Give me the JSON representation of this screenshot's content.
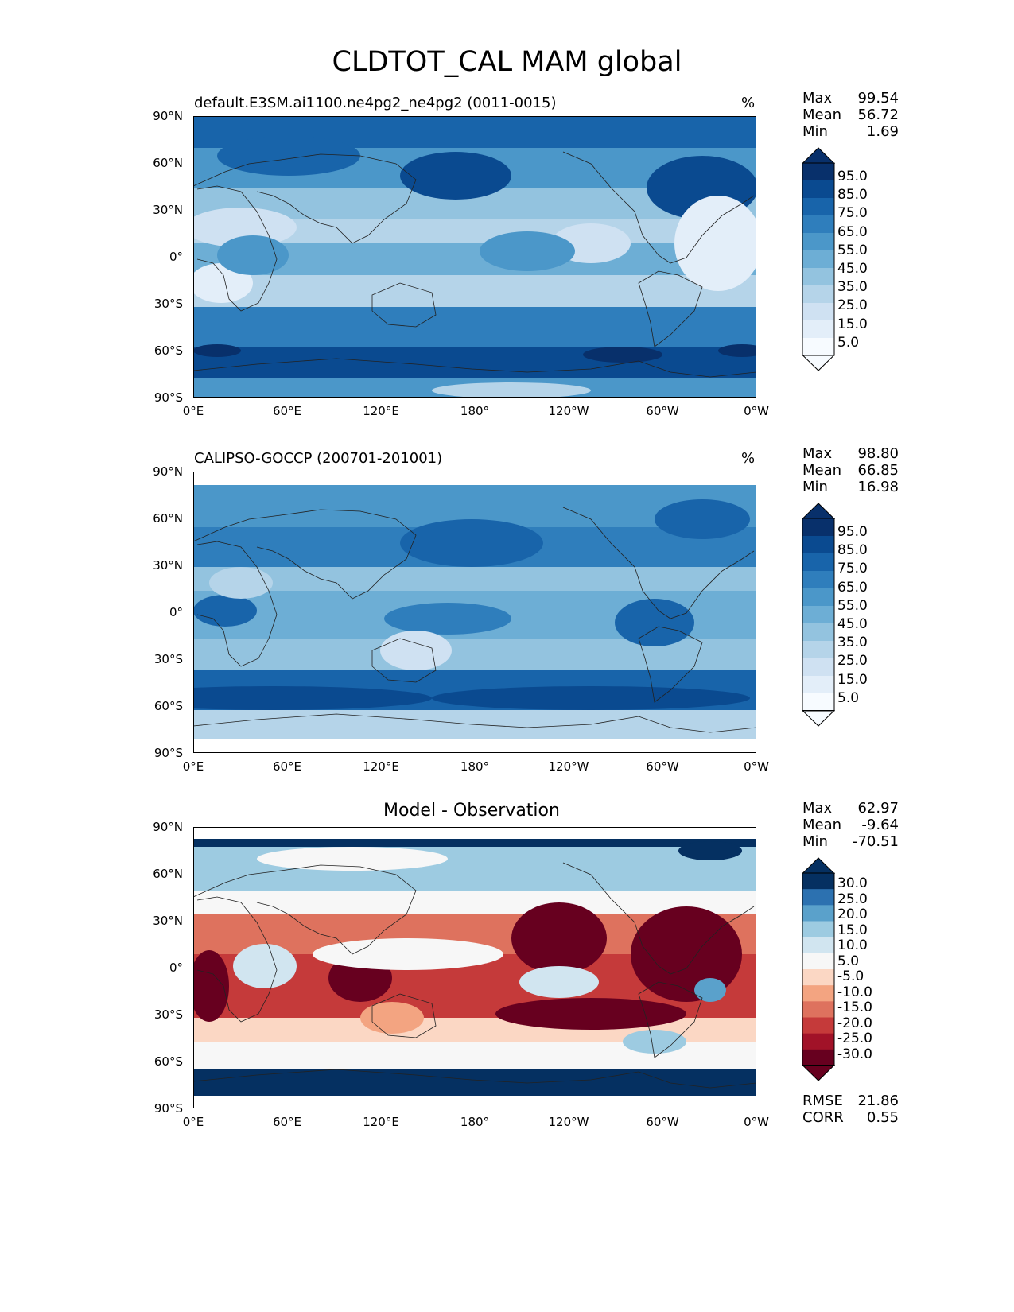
{
  "title": "CLDTOT_CAL MAM global",
  "panels": [
    {
      "label": "default.E3SM.ai1100.ne4pg2_ne4pg2 (0011-0015)",
      "unit": "%",
      "stats": [
        {
          "k": "Max",
          "v": "99.54"
        },
        {
          "k": "Mean",
          "v": "56.72"
        },
        {
          "k": "Min",
          "v": "1.69"
        }
      ],
      "cbar": [
        "95.0",
        "85.0",
        "75.0",
        "65.0",
        "55.0",
        "45.0",
        "35.0",
        "25.0",
        "15.0",
        "5.0"
      ]
    },
    {
      "label": "CALIPSO-GOCCP (200701-201001)",
      "unit": "%",
      "stats": [
        {
          "k": "Max",
          "v": "98.80"
        },
        {
          "k": "Mean",
          "v": "66.85"
        },
        {
          "k": "Min",
          "v": "16.98"
        }
      ],
      "cbar": [
        "95.0",
        "85.0",
        "75.0",
        "65.0",
        "55.0",
        "45.0",
        "35.0",
        "25.0",
        "15.0",
        "5.0"
      ]
    },
    {
      "label": "Model - Observation",
      "unit": "",
      "stats": [
        {
          "k": "Max",
          "v": "62.97"
        },
        {
          "k": "Mean",
          "v": "-9.64"
        },
        {
          "k": "Min",
          "v": "-70.51"
        }
      ],
      "cbar": [
        "30.0",
        "25.0",
        "20.0",
        "15.0",
        "10.0",
        "5.0",
        "-5.0",
        "-10.0",
        "-15.0",
        "-20.0",
        "-25.0",
        "-30.0"
      ],
      "extra": [
        {
          "k": "RMSE",
          "v": "21.86"
        },
        {
          "k": "CORR",
          "v": "0.55"
        }
      ]
    }
  ],
  "lat_ticks": [
    "90°N",
    "60°N",
    "30°N",
    "0°",
    "30°S",
    "60°S",
    "90°S"
  ],
  "lon_ticks": [
    "0°E",
    "60°E",
    "120°E",
    "180°",
    "120°W",
    "60°W",
    "0°W"
  ],
  "colors": {
    "blues": [
      "#f7fbff",
      "#e3eef9",
      "#cfe1f2",
      "#b5d4e9",
      "#93c3df",
      "#6daed5",
      "#4b97c9",
      "#2f7ebc",
      "#1864aa",
      "#0a4a90",
      "#08306b"
    ],
    "rdbu": [
      "#67001f",
      "#a11228",
      "#c53a3a",
      "#de725e",
      "#f3a481",
      "#fbd7c4",
      "#f7f7f7",
      "#d1e5f0",
      "#9dcbe1",
      "#5aa1cb",
      "#2c71b0",
      "#053061"
    ]
  }
}
